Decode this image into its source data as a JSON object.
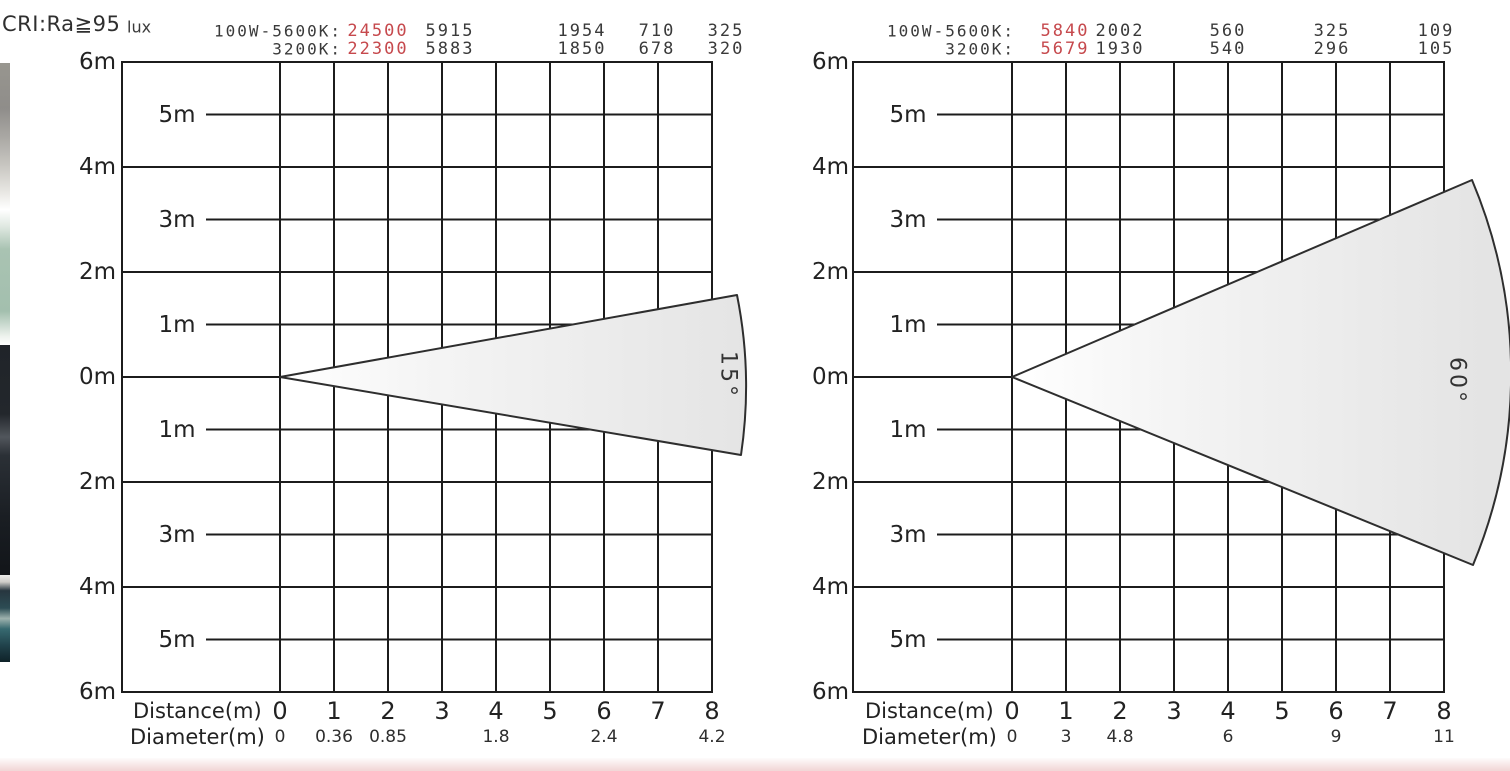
{
  "page": {
    "cri_label": "CRI:Ra≧95",
    "lux_label": "lux",
    "colors": {
      "accent_red": "#c6494d",
      "grid_line": "#1c1c1c",
      "cone_stroke": "#2e2e2e",
      "cone_fill_start": "#ffffff",
      "cone_fill_end": "#e4e4e4",
      "bottom_strip": "#f2d8d8"
    }
  },
  "chart_data": [
    {
      "type": "area",
      "title": "15 degree beam illuminance cone",
      "beam_angle_label": "15°",
      "beam_angle_deg": 15,
      "header": {
        "unit": "lux",
        "measure_distances_m": [
          1,
          2,
          4,
          6,
          8
        ],
        "rows": [
          {
            "label": "100W-5600K:",
            "values": [
              "24500",
              "5915",
              "1954",
              "710",
              "325"
            ]
          },
          {
            "label": "3200K:",
            "values": [
              "22300",
              "5883",
              "1850",
              "678",
              "320"
            ]
          }
        ]
      },
      "series": [
        {
          "name": "100W-5600K",
          "lux": [
            24500,
            5915,
            1954,
            710,
            325
          ]
        },
        {
          "name": "3200K",
          "lux": [
            22300,
            5883,
            1850,
            678,
            320
          ]
        }
      ],
      "x_axis": {
        "label": "Distance(m)",
        "ticks": [
          "0",
          "1",
          "2",
          "3",
          "4",
          "5",
          "6",
          "7",
          "8"
        ],
        "range_m": [
          0,
          8
        ]
      },
      "y_axis": {
        "range_m": [
          -6,
          6
        ],
        "outer_labels": [
          "6m",
          "4m",
          "2m",
          "0m",
          "2m",
          "4m",
          "6m"
        ],
        "inner_labels": [
          "5m",
          "3m",
          "1m",
          "1m",
          "3m",
          "5m"
        ]
      },
      "diameter_row": {
        "label": "Diameter(m)",
        "values": [
          {
            "distance_m": 0,
            "text": "0"
          },
          {
            "distance_m": 1,
            "text": "0.36"
          },
          {
            "distance_m": 2,
            "text": "0.85"
          },
          {
            "distance_m": 4,
            "text": "1.8"
          },
          {
            "distance_m": 6,
            "text": "2.4"
          },
          {
            "distance_m": 8,
            "text": "4.2"
          }
        ]
      }
    },
    {
      "type": "area",
      "title": "60 degree beam illuminance cone",
      "beam_angle_label": "60°",
      "beam_angle_deg": 60,
      "header": {
        "unit": "lux",
        "measure_distances_m": [
          1,
          2,
          4,
          6,
          8
        ],
        "rows": [
          {
            "label": "100W-5600K:",
            "values": [
              "5840",
              "2002",
              "560",
              "325",
              "109"
            ]
          },
          {
            "label": "3200K:",
            "values": [
              "5679",
              "1930",
              "540",
              "296",
              "105"
            ]
          }
        ]
      },
      "series": [
        {
          "name": "100W-5600K",
          "lux": [
            5840,
            2002,
            560,
            325,
            109
          ]
        },
        {
          "name": "3200K",
          "lux": [
            5679,
            1930,
            540,
            296,
            105
          ]
        }
      ],
      "x_axis": {
        "label": "Distance(m)",
        "ticks": [
          "0",
          "1",
          "2",
          "3",
          "4",
          "5",
          "6",
          "7",
          "8"
        ],
        "range_m": [
          0,
          8
        ]
      },
      "y_axis": {
        "range_m": [
          -6,
          6
        ],
        "outer_labels": [
          "6m",
          "4m",
          "2m",
          "0m",
          "2m",
          "4m",
          "6m"
        ],
        "inner_labels": [
          "5m",
          "3m",
          "1m",
          "1m",
          "3m",
          "5m"
        ]
      },
      "diameter_row": {
        "label": "Diameter(m)",
        "values": [
          {
            "distance_m": 0,
            "text": "0"
          },
          {
            "distance_m": 1,
            "text": "3"
          },
          {
            "distance_m": 2,
            "text": "4.8"
          },
          {
            "distance_m": 4,
            "text": "6"
          },
          {
            "distance_m": 6,
            "text": "9"
          },
          {
            "distance_m": 8,
            "text": "11"
          }
        ]
      }
    }
  ]
}
